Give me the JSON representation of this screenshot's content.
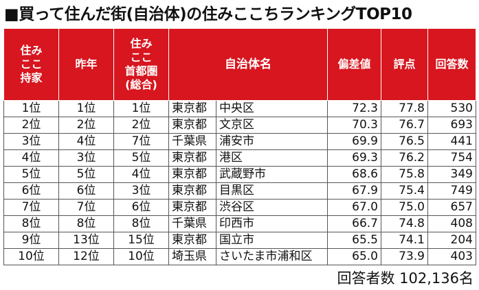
{
  "title": "■買って住んだ街(自治体)の住みここちランキングTOP10",
  "headers": {
    "rank": "住み\nここ\n持家",
    "last_year": "昨年",
    "metro": "住み\nここ\n首都圏\n(総合)",
    "name": "自治体名",
    "deviation": "偏差値",
    "score": "評点",
    "respondents": "回答数"
  },
  "rows": [
    {
      "rank": "1位",
      "last_year": "1位",
      "metro": "1位",
      "pref": "東京都",
      "city": "中央区",
      "deviation": "72.3",
      "score": "77.8",
      "respondents": "530"
    },
    {
      "rank": "2位",
      "last_year": "2位",
      "metro": "2位",
      "pref": "東京都",
      "city": "文京区",
      "deviation": "70.3",
      "score": "76.7",
      "respondents": "693"
    },
    {
      "rank": "3位",
      "last_year": "4位",
      "metro": "7位",
      "pref": "千葉県",
      "city": "浦安市",
      "deviation": "69.9",
      "score": "76.5",
      "respondents": "441"
    },
    {
      "rank": "4位",
      "last_year": "3位",
      "metro": "5位",
      "pref": "東京都",
      "city": "港区",
      "deviation": "69.3",
      "score": "76.2",
      "respondents": "754"
    },
    {
      "rank": "5位",
      "last_year": "5位",
      "metro": "4位",
      "pref": "東京都",
      "city": "武蔵野市",
      "deviation": "68.6",
      "score": "75.8",
      "respondents": "349"
    },
    {
      "rank": "6位",
      "last_year": "6位",
      "metro": "3位",
      "pref": "東京都",
      "city": "目黒区",
      "deviation": "67.9",
      "score": "75.4",
      "respondents": "749"
    },
    {
      "rank": "7位",
      "last_year": "7位",
      "metro": "6位",
      "pref": "東京都",
      "city": "渋谷区",
      "deviation": "67.0",
      "score": "75.0",
      "respondents": "657"
    },
    {
      "rank": "8位",
      "last_year": "8位",
      "metro": "8位",
      "pref": "千葉県",
      "city": "印西市",
      "deviation": "66.7",
      "score": "74.8",
      "respondents": "408"
    },
    {
      "rank": "9位",
      "last_year": "13位",
      "metro": "15位",
      "pref": "東京都",
      "city": "国立市",
      "deviation": "65.5",
      "score": "74.1",
      "respondents": "204"
    },
    {
      "rank": "10位",
      "last_year": "12位",
      "metro": "10位",
      "pref": "埼玉県",
      "city": "さいたま市浦和区",
      "deviation": "65.0",
      "score": "73.9",
      "respondents": "403"
    }
  ],
  "footer": "回答者数 102,136名",
  "colors": {
    "header_bg": "#d7161f",
    "header_text": "#ffffff",
    "border": "#555555"
  }
}
